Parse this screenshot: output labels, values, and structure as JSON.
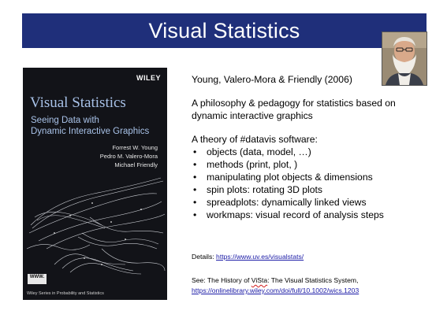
{
  "slide": {
    "title": "Visual Statistics",
    "colors": {
      "title_bar": "#1f2f7a",
      "title_text": "#ffffff",
      "link": "#1a1aa6",
      "book_cover": "#121318",
      "book_title": "#a8c2e8"
    }
  },
  "book": {
    "publisher": "WILEY",
    "title": "Visual Statistics",
    "subtitle_line1": "Seeing Data with",
    "subtitle_line2": "Dynamic Interactive Graphics",
    "author1": "Forrest W. Young",
    "author2": "Pedro M. Valero-Mora",
    "author3": "Michael Friendly",
    "badge": "WWW.",
    "series": "Wiley Series in Probability and Statistics"
  },
  "portrait": {
    "icon": "author-portrait-photo"
  },
  "content": {
    "citation": "Young, Valero-Mora & Friendly (2006)",
    "philosophy_line1": "A philosophy & pedagogy for statistics based on",
    "philosophy_line2": "dynamic interactive graphics",
    "theory_heading": "A theory of #datavis software:",
    "bullets": [
      "objects (data, model, …)",
      "methods (print, plot, )",
      "manipulating plot objects & dimensions",
      "spin plots: rotating 3D plots",
      "spreadplots: dynamically linked views",
      "workmaps: visual record of analysis steps"
    ]
  },
  "footer": {
    "details_label": "Details: ",
    "details_url": "https://www.uv.es/visualstats/",
    "see_prefix": "See: The History of ",
    "see_vista": "ViSta",
    "see_suffix": ": The Visual Statistics System,",
    "see_url": "https://onlinelibrary.wiley.com/doi/full/10.1002/wics.1203"
  }
}
